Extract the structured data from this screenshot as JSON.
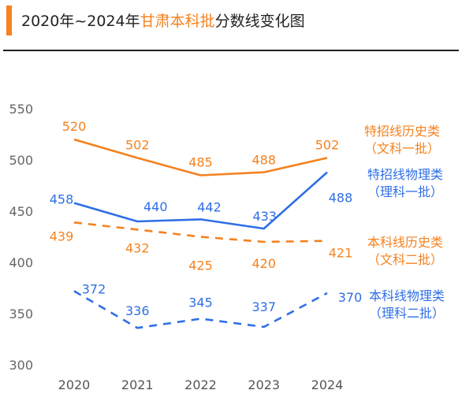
{
  "title": {
    "pre": "2020年~2024年",
    "highlight": "甘肃本科批",
    "post": "分数线变化图"
  },
  "chart_data": {
    "type": "line",
    "categories": [
      "2020",
      "2021",
      "2022",
      "2023",
      "2024"
    ],
    "ylim": [
      300,
      550
    ],
    "yticks": [
      300,
      350,
      400,
      450,
      500,
      550
    ],
    "grid": false,
    "legend": "right",
    "series": [
      {
        "name": "特招线历史类",
        "sub": "（文科一批）",
        "color": "#f5821f",
        "dashed": false,
        "values": [
          520,
          502,
          485,
          488,
          502
        ]
      },
      {
        "name": "特招线物理类",
        "sub": "（理科一批）",
        "color": "#2f6fe6",
        "dashed": false,
        "values": [
          458,
          440,
          442,
          433,
          488
        ]
      },
      {
        "name": "本科线历史类",
        "sub": "（文科二批）",
        "color": "#f5821f",
        "dashed": true,
        "values": [
          439,
          432,
          425,
          420,
          421
        ]
      },
      {
        "name": "本科线物理类",
        "sub": "（理科二批）",
        "color": "#2f6fe6",
        "dashed": true,
        "values": [
          372,
          336,
          345,
          337,
          370
        ]
      }
    ]
  }
}
